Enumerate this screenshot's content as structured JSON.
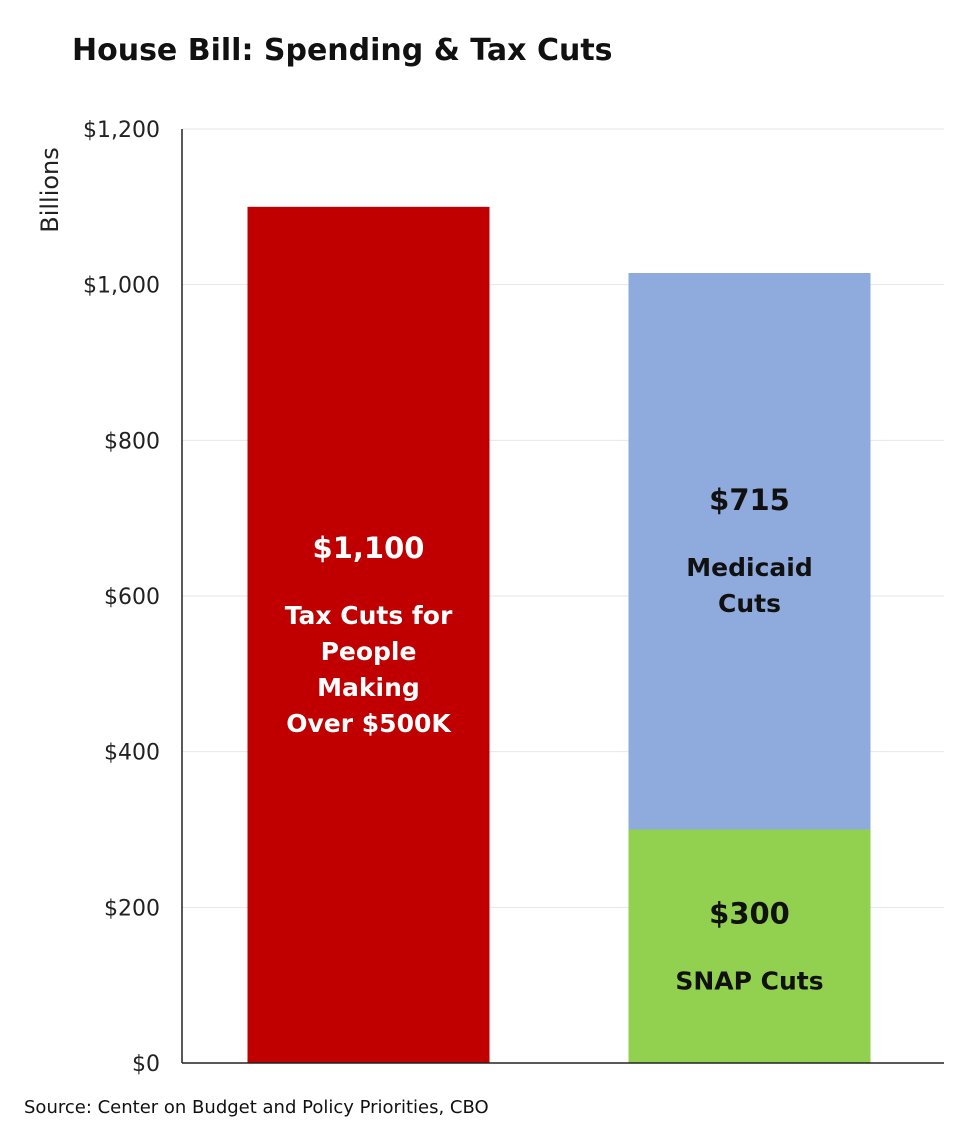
{
  "chart_data": {
    "type": "bar",
    "title": "House Bill: Spending & Tax Cuts",
    "ylabel": "Billions",
    "xlabel": "",
    "ylim": [
      0,
      1200
    ],
    "yticks": [
      0,
      200,
      400,
      600,
      800,
      1000,
      1200
    ],
    "ytick_labels": [
      "$0",
      "$200",
      "$400",
      "$600",
      "$800",
      "$1,000",
      "$1,200"
    ],
    "grid": true,
    "stacked": true,
    "bars": [
      {
        "name": "tax-cuts",
        "segments": [
          {
            "name": "Tax Cuts for People Making Over $500K",
            "value": 1100,
            "label": "$1,100",
            "desc": [
              "Tax Cuts for",
              "People",
              "Making",
              "Over $500K"
            ],
            "color": "#c00000",
            "text_color": "#ffffff"
          }
        ]
      },
      {
        "name": "program-cuts",
        "segments": [
          {
            "name": "SNAP Cuts",
            "value": 300,
            "label": "$300",
            "desc": [
              "SNAP Cuts"
            ],
            "color": "#92d050",
            "text_color": "#111111"
          },
          {
            "name": "Medicaid Cuts",
            "value": 715,
            "label": "$715",
            "desc": [
              "Medicaid",
              "Cuts"
            ],
            "color": "#8faadc",
            "text_color": "#111111"
          }
        ]
      }
    ]
  },
  "source": "Source: Center on Budget and Policy Priorities, CBO"
}
